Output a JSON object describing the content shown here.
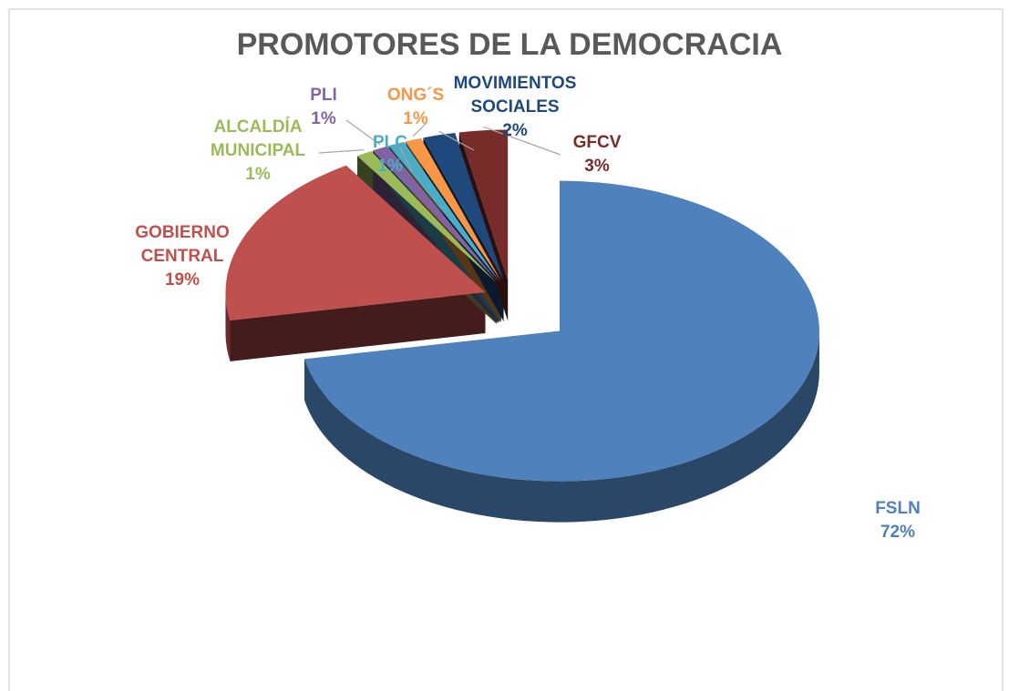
{
  "chart_data": {
    "type": "pie",
    "title": "PROMOTORES DE LA DEMOCRACIA",
    "categories": [
      "FSLN",
      "GOBIERNO CENTRAL",
      "ALCALDÍA MUNICIPAL",
      "PLI",
      "PLC",
      "ONG´S",
      "MOVIMIENTOS SOCIALES",
      "GFCV"
    ],
    "values": [
      72,
      19,
      1,
      1,
      1,
      1,
      2,
      3
    ],
    "value_labels": [
      "72%",
      "19%",
      "1%",
      "1%",
      "1%",
      "1%",
      "2%",
      "3%"
    ],
    "colors": [
      "#4f81bd",
      "#c0504d",
      "#9bbb59",
      "#8064a2",
      "#4bacc6",
      "#f79646",
      "#1f497d",
      "#772c2a"
    ]
  }
}
